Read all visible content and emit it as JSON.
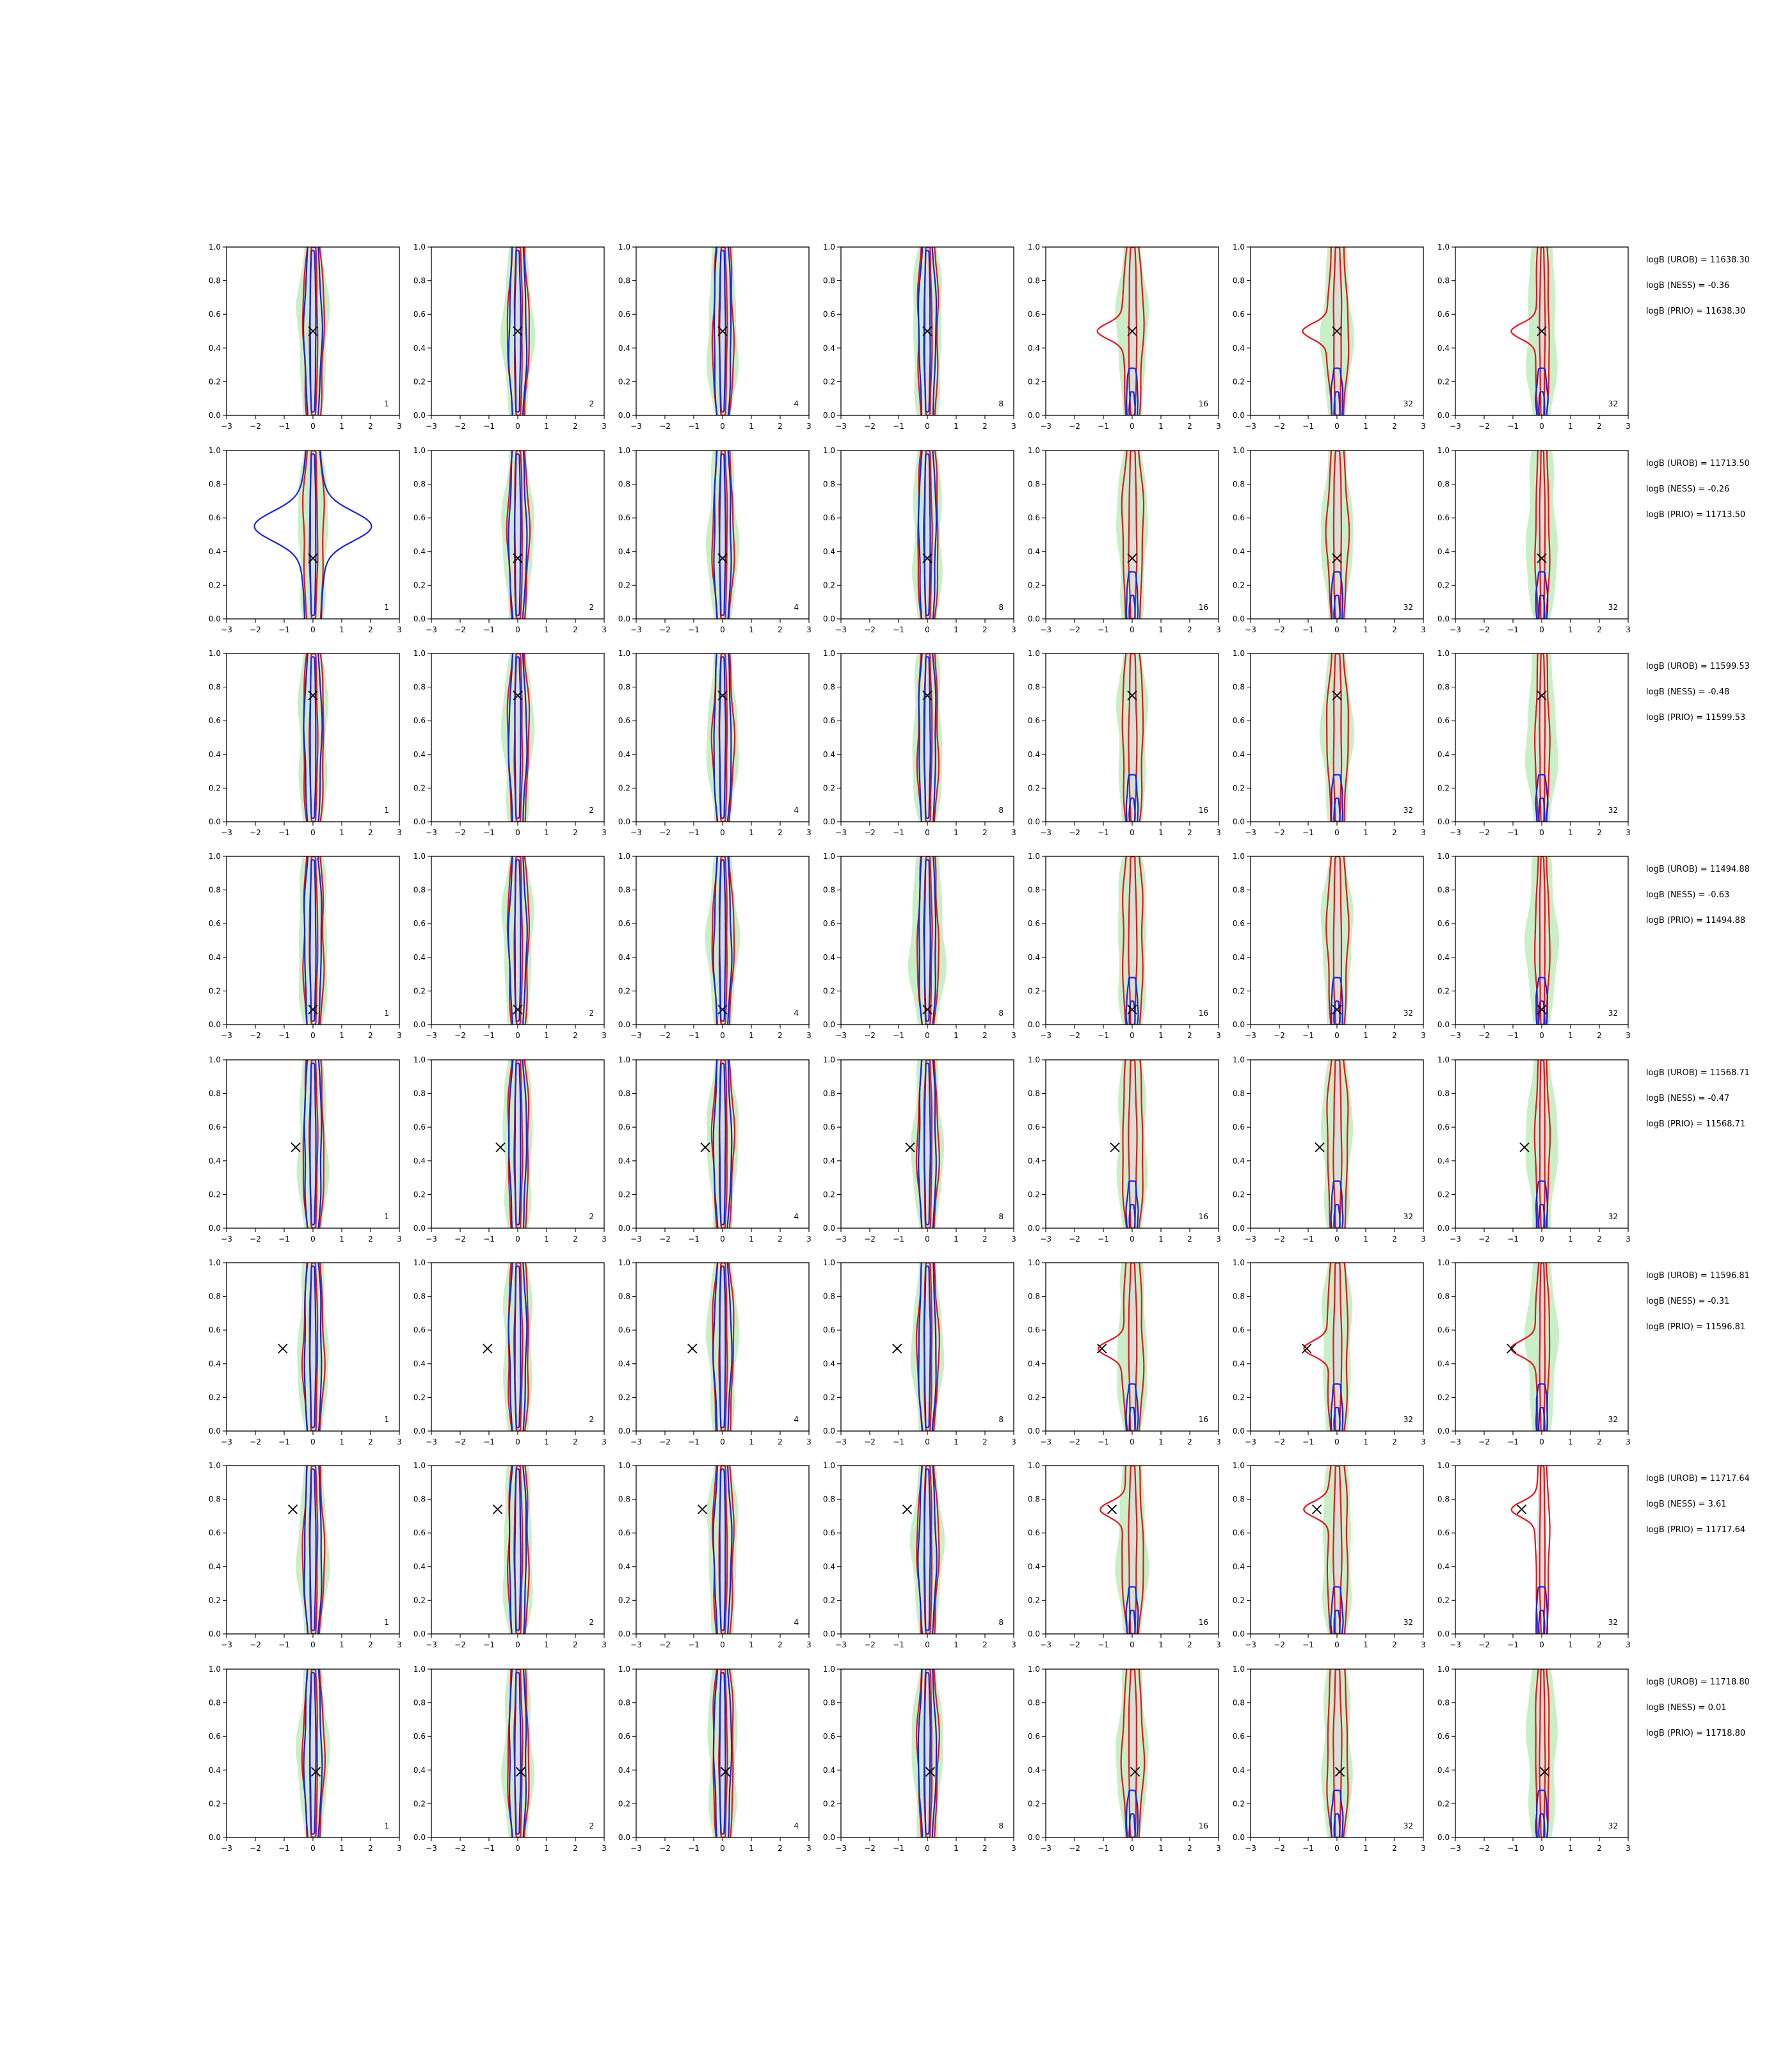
{
  "chart_data": {
    "type": "contour-grid",
    "grid": {
      "rows": 8,
      "cols": 7
    },
    "xlim": [
      -3,
      3
    ],
    "ylim": [
      0.0,
      1.0
    ],
    "xticks": [
      "−3",
      "−2",
      "−1",
      "0",
      "1",
      "2",
      "3"
    ],
    "yticks": [
      "0.0",
      "0.2",
      "0.4",
      "0.6",
      "0.8",
      "1.0"
    ],
    "column_tags": [
      "1",
      "2",
      "4",
      "8",
      "16",
      "32",
      "32"
    ],
    "colors": {
      "green_fill": "#c9efc7",
      "grey_fill": "#dcdcdc",
      "red": "#e8141b",
      "blue": "#1a22e0",
      "marker": "#000000"
    },
    "rows": [
      {
        "marker": [
          0.0,
          0.5
        ],
        "annotations": [
          "logB (UROB) = 11638.30",
          "logB (NESS) = -0.36",
          "logB (PRIO) = 11638.30"
        ]
      },
      {
        "marker": [
          0.0,
          0.36
        ],
        "annotations": [
          "logB (UROB) = 11713.50",
          "logB (NESS) = -0.26",
          "logB (PRIO) = 11713.50"
        ]
      },
      {
        "marker": [
          0.0,
          0.75
        ],
        "annotations": [
          "logB (UROB) = 11599.53",
          "logB (NESS) = -0.48",
          "logB (PRIO) = 11599.53"
        ]
      },
      {
        "marker": [
          0.0,
          0.09
        ],
        "annotations": [
          "logB (UROB) = 11494.88",
          "logB (NESS) = -0.63",
          "logB (PRIO) = 11494.88"
        ]
      },
      {
        "marker": [
          -0.6,
          0.48
        ],
        "annotations": [
          "logB (UROB) = 11568.71",
          "logB (NESS) = -0.47",
          "logB (PRIO) = 11568.71"
        ]
      },
      {
        "marker": [
          -1.05,
          0.49
        ],
        "annotations": [
          "logB (UROB) = 11596.81",
          "logB (NESS) = -0.31",
          "logB (PRIO) = 11596.81"
        ]
      },
      {
        "marker": [
          -0.7,
          0.74
        ],
        "annotations": [
          "logB (UROB) = 11717.64",
          "logB (NESS) = 3.61",
          "logB (PRIO) = 11717.64"
        ]
      },
      {
        "marker": [
          0.1,
          0.39
        ],
        "annotations": [
          "logB (UROB) = 11718.80",
          "logB (NESS) = 0.01",
          "logB (PRIO) = 11718.80"
        ]
      }
    ]
  }
}
